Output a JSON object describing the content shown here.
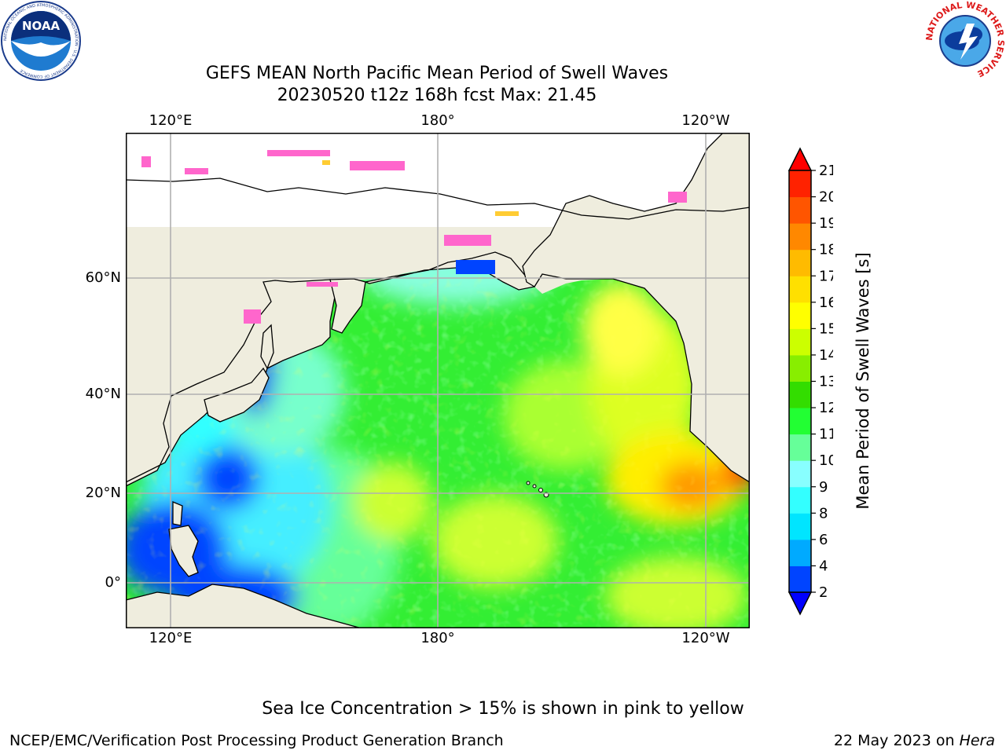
{
  "title_line1": "GEFS MEAN North Pacific Mean Period of Swell Waves",
  "title_line2": "20230520 t12z 168h fcst   Max: 21.45",
  "lon_labels": [
    "120°E",
    "180°",
    "120°W"
  ],
  "lat_labels": [
    "60°N",
    "40°N",
    "20°N",
    "0°"
  ],
  "colorbar": {
    "label": "Mean Period of Swell Waves [s]",
    "ticks": [
      "2",
      "4",
      "6",
      "8",
      "9",
      "10",
      "11",
      "12",
      "13",
      "14",
      "15",
      "16",
      "17",
      "18",
      "19",
      "20",
      "21"
    ],
    "colors": [
      "#0044ff",
      "#00aaff",
      "#00e5ff",
      "#33ffff",
      "#88ffff",
      "#66ff99",
      "#22ff33",
      "#33dd00",
      "#88ee00",
      "#ccff00",
      "#ffff00",
      "#ffe000",
      "#ffbb00",
      "#ff8800",
      "#ff5500",
      "#ff2200"
    ],
    "under_color": "#0000ff",
    "over_color": "#ff0000"
  },
  "logos": {
    "left": {
      "name": "NOAA",
      "ring_text": "NATIONAL OCEANIC AND ATMOSPHERIC ADMINISTRATION · U.S. DEPARTMENT OF COMMERCE"
    },
    "right": {
      "ring_text": "NATIONAL WEATHER SERVICE"
    }
  },
  "sea_ice_note": "Sea Ice Concentration > 15% is shown in pink to yellow",
  "footer_left": "NCEP/EMC/Verification Post Processing Product Generation Branch",
  "footer_right_date": "22 May 2023 on ",
  "footer_right_host": "Hera",
  "colors": {
    "land": "#efedde",
    "grid": "#b0b0b0",
    "ice_pink": "#ff66cc",
    "ice_yellow": "#ffcc33"
  }
}
